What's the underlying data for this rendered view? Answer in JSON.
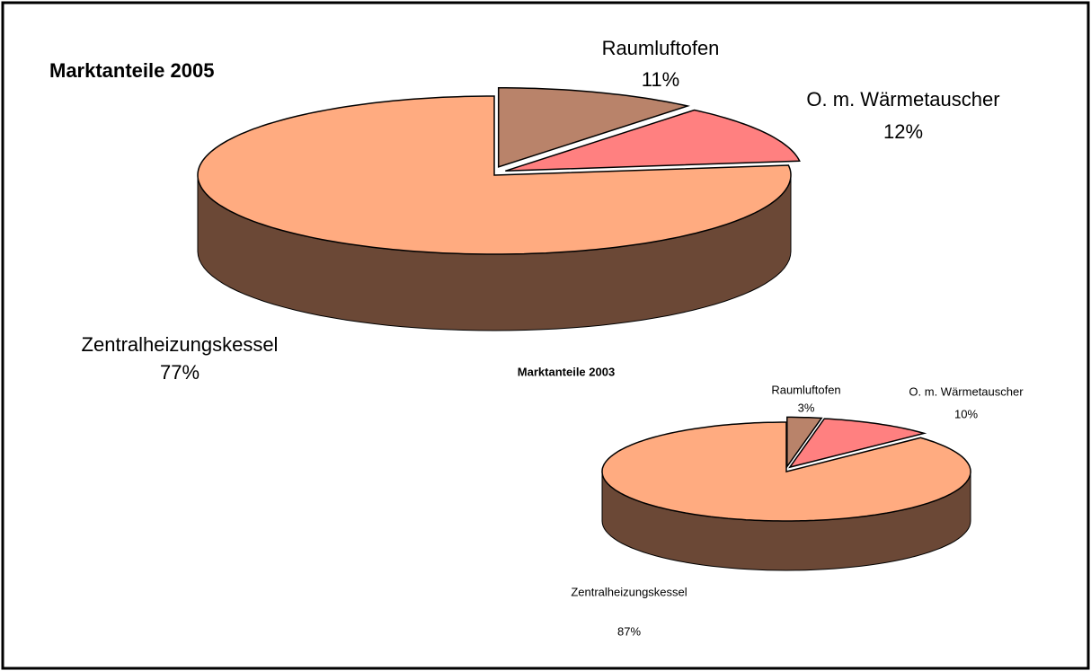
{
  "chart_data": [
    {
      "type": "pie",
      "title": "Marktanteile 2005",
      "categories": [
        "Raumluftofen",
        "O. m. Wärmetauscher",
        "Zentralheizungskessel"
      ],
      "values": [
        11,
        12,
        77
      ],
      "value_labels": [
        "11%",
        "12%",
        "77%"
      ],
      "colors": [
        "#b9836a",
        "#ff8080",
        "#ffab80"
      ]
    },
    {
      "type": "pie",
      "title": "Marktanteile 2003",
      "categories": [
        "Raumluftofen",
        "O. m. Wärmetauscher",
        "Zentralheizungskessel"
      ],
      "values": [
        3,
        10,
        87
      ],
      "value_labels": [
        "3%",
        "10%",
        "87%"
      ],
      "colors": [
        "#b9836a",
        "#ff8080",
        "#ffab80"
      ]
    }
  ]
}
